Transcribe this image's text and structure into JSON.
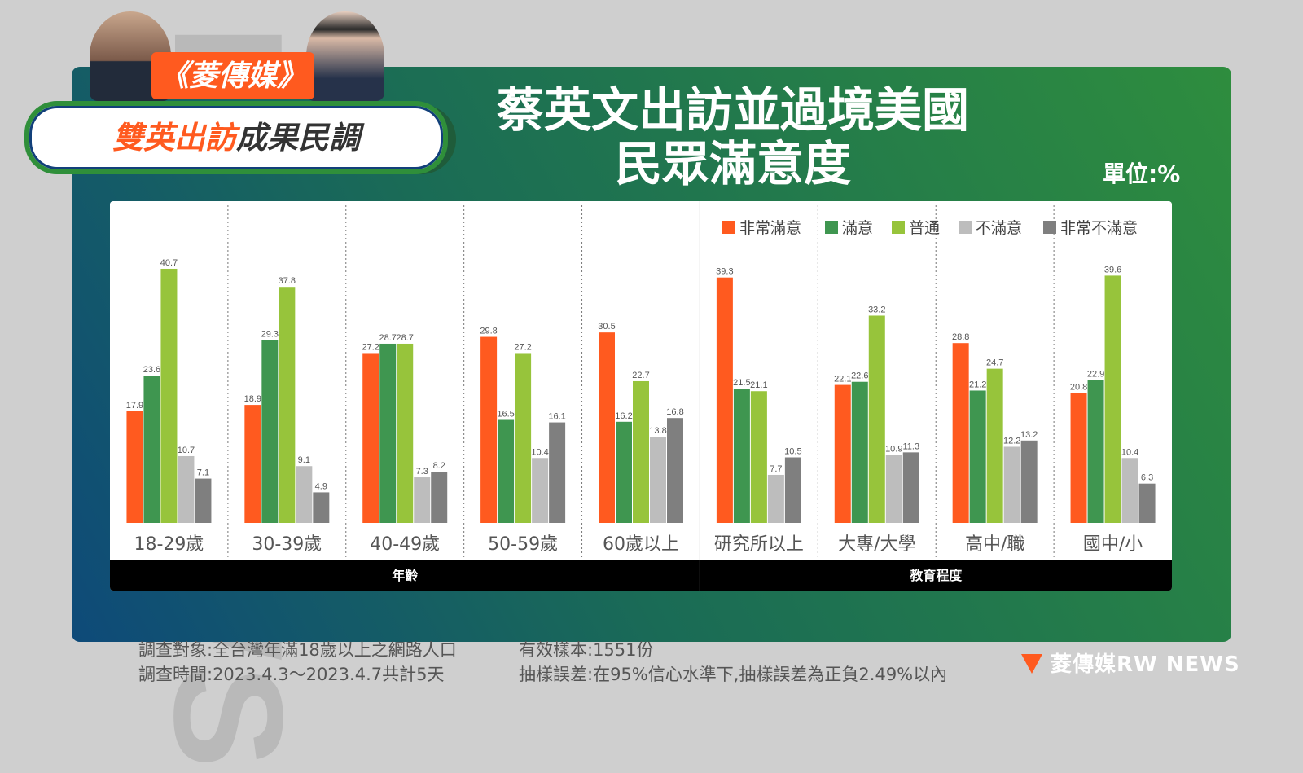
{
  "watermark": "RWNEWS",
  "brand_badge": "《菱傳媒》",
  "pill": {
    "part_a": "雙英出訪",
    "part_b": "成果民調"
  },
  "title_line1": "蔡英文出訪並過境美國",
  "title_line2": "民眾滿意度",
  "unit": "單位:%",
  "chart_data": {
    "type": "bar",
    "categories": [
      "18-29歲",
      "30-39歲",
      "40-49歲",
      "50-59歲",
      "60歲以上",
      "研究所以上",
      "大專/大學",
      "高中/職",
      "國中/小"
    ],
    "groups": [
      {
        "label": "年齡",
        "count": 5
      },
      {
        "label": "教育程度",
        "count": 4
      }
    ],
    "legend_position": "top-right",
    "grid": false,
    "ylim": [
      0,
      45
    ],
    "series": [
      {
        "name": "非常滿意",
        "color": "#ff5a1f",
        "values": [
          17.9,
          18.9,
          27.2,
          29.8,
          30.5,
          39.3,
          22.1,
          28.8,
          20.8
        ]
      },
      {
        "name": "滿意",
        "color": "#3f9650",
        "values": [
          23.6,
          29.3,
          28.7,
          16.5,
          16.2,
          21.5,
          22.6,
          21.2,
          22.9
        ]
      },
      {
        "name": "普通",
        "color": "#97c43b",
        "values": [
          40.7,
          37.8,
          28.7,
          27.2,
          22.7,
          21.1,
          33.2,
          24.7,
          39.6
        ]
      },
      {
        "name": "不滿意",
        "color": "#bdbdbd",
        "values": [
          10.7,
          9.1,
          7.3,
          10.4,
          13.8,
          7.7,
          10.9,
          12.2,
          10.4
        ]
      },
      {
        "name": "非常不滿意",
        "color": "#7f7f7f",
        "values": [
          7.1,
          4.9,
          8.2,
          16.1,
          16.8,
          10.5,
          11.3,
          13.2,
          6.3
        ]
      }
    ]
  },
  "footer": {
    "survey_target": "調查對象:全台灣年滿18歲以上之網路人口",
    "survey_time": "調查時間:2023.4.3～2023.4.7共計5天",
    "sample": "有效樣本:1551份",
    "margin": "抽樣誤差:在95%信心水準下,抽樣誤差為正負2.49%以內"
  },
  "logo": "菱傳媒RW NEWS"
}
